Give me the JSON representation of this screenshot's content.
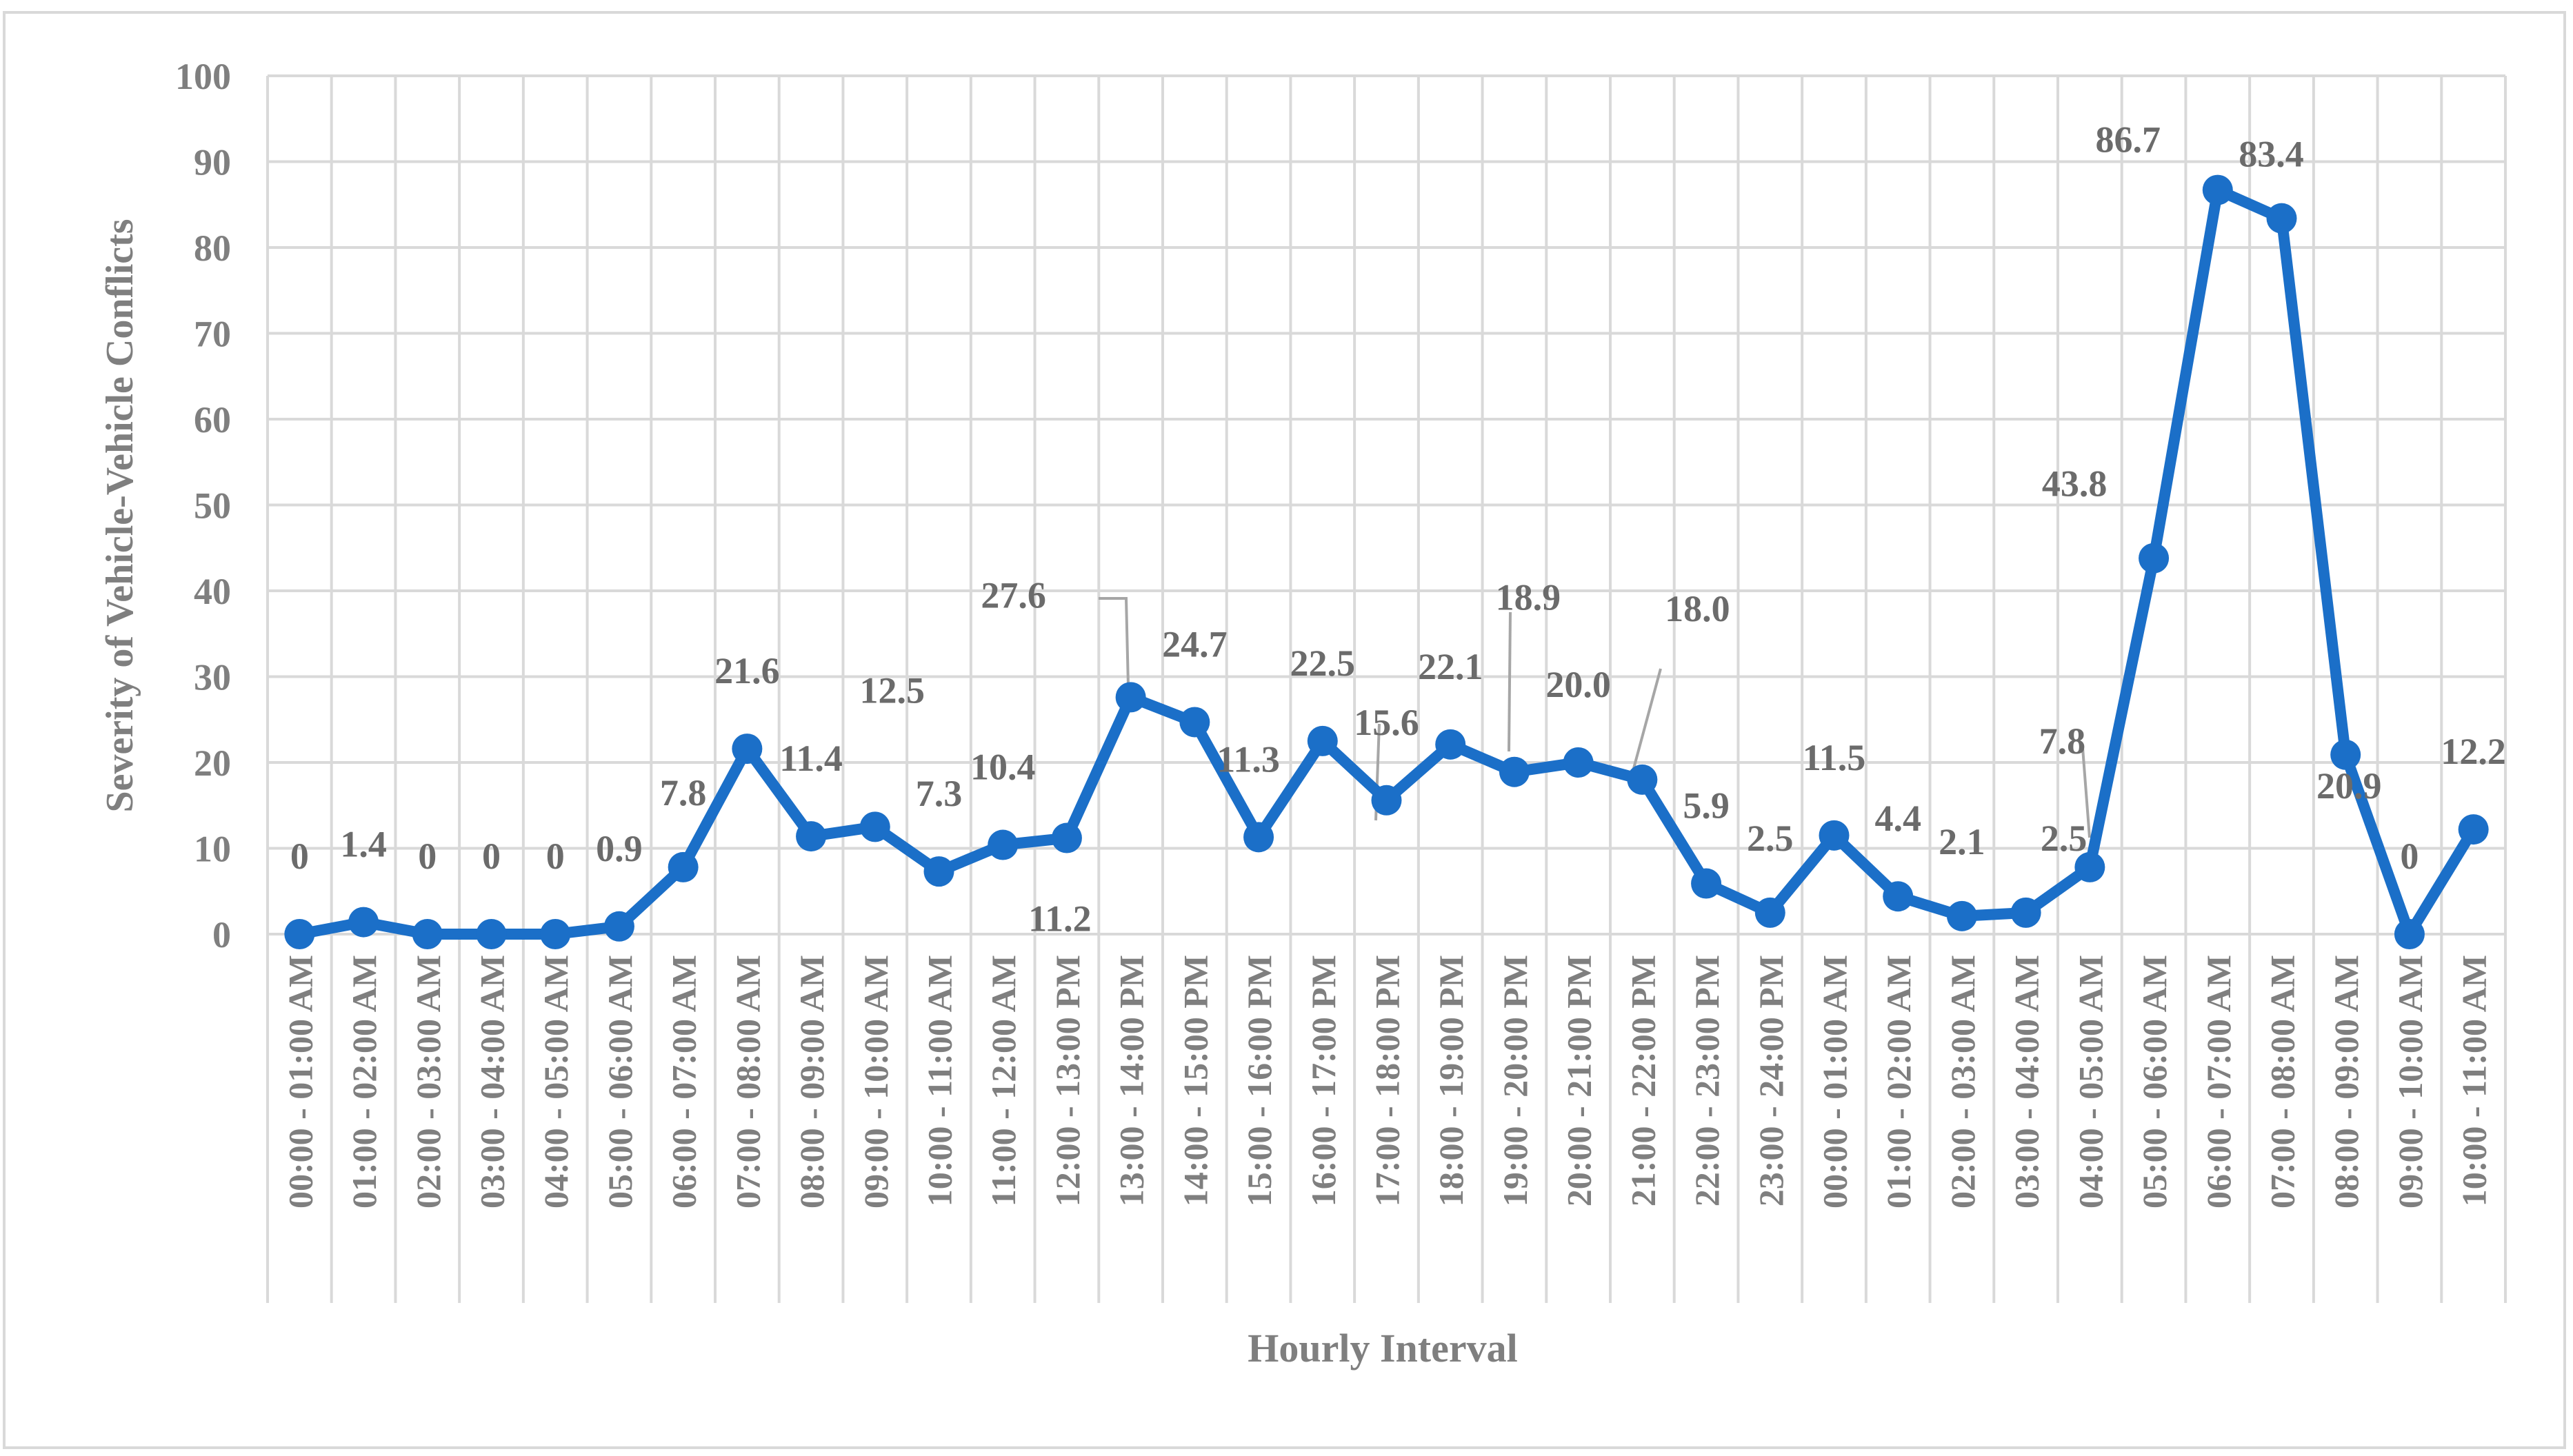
{
  "chart_data": {
    "type": "line",
    "title": "",
    "xlabel": "Hourly Interval",
    "ylabel": "Severity of Vehicle-Vehicle Conflicts",
    "ylim": [
      0,
      100
    ],
    "yticks": [
      0,
      10,
      20,
      30,
      40,
      50,
      60,
      70,
      80,
      90,
      100
    ],
    "grid": true,
    "legend": "none",
    "colors": {
      "line": "#1b6fc8",
      "grid": "#d9d9d9",
      "text": "#7f7f7f",
      "frame": "#d9d9d9"
    },
    "categories": [
      "00:00 - 01:00 AM",
      "01:00 - 02:00 AM",
      "02:00 - 03:00 AM",
      "03:00 - 04:00 AM",
      "04:00 - 05:00 AM",
      "05:00 - 06:00 AM",
      "06:00 - 07:00 AM",
      "07:00 - 08:00 AM",
      "08:00 - 09:00 AM",
      "09:00 - 10:00 AM",
      "10:00 - 11:00 AM",
      "11:00 - 12:00 AM",
      "12:00 - 13:00 PM",
      "13:00 - 14:00 PM",
      "14:00 - 15:00 PM",
      "15:00 - 16:00 PM",
      "16:00 - 17:00 PM",
      "17:00 - 18:00 PM",
      "18:00 - 19:00 PM",
      "19:00 - 20:00 PM",
      "20:00 - 21:00 PM",
      "21:00 - 22:00 PM",
      "22:00 - 23:00 PM",
      "23:00 - 24:00 PM",
      "00:00 - 01:00 AM",
      "01:00 - 02:00 AM",
      "02:00 - 03:00 AM",
      "03:00 - 04:00 AM",
      "04:00 - 05:00 AM",
      "05:00 - 06:00 AM",
      "06:00 - 07:00 AM",
      "07:00 - 08:00 AM",
      "08:00 - 09:00 AM",
      "09:00 - 10:00 AM",
      "10:00 - 11:00 AM"
    ],
    "series": [
      {
        "values": [
          0,
          1.4,
          0,
          0,
          0,
          0.9,
          7.8,
          21.6,
          11.4,
          12.5,
          7.3,
          10.4,
          11.2,
          27.6,
          24.7,
          11.3,
          22.5,
          15.6,
          22.1,
          18.9,
          20.0,
          18.0,
          5.9,
          2.5,
          11.5,
          4.4,
          2.1,
          2.5,
          7.8,
          43.8,
          86.7,
          83.4,
          20.9,
          0,
          12.2
        ],
        "labels": [
          "0",
          "1.4",
          "0",
          "0",
          "0",
          "0.9",
          "7.8",
          "21.6",
          "11.4",
          "12.5",
          "7.3",
          "10.4",
          "11.2",
          "27.6",
          "24.7",
          "11.3",
          "22.5",
          "15.6",
          "22.1",
          "18.9",
          "20.0",
          "18.0",
          "5.9",
          "2.5",
          "11.5",
          "4.4",
          "2.1",
          "2.5",
          "7.8",
          "43.8",
          "86.7",
          "83.4",
          "20.9",
          "0",
          "12.2"
        ]
      }
    ]
  }
}
